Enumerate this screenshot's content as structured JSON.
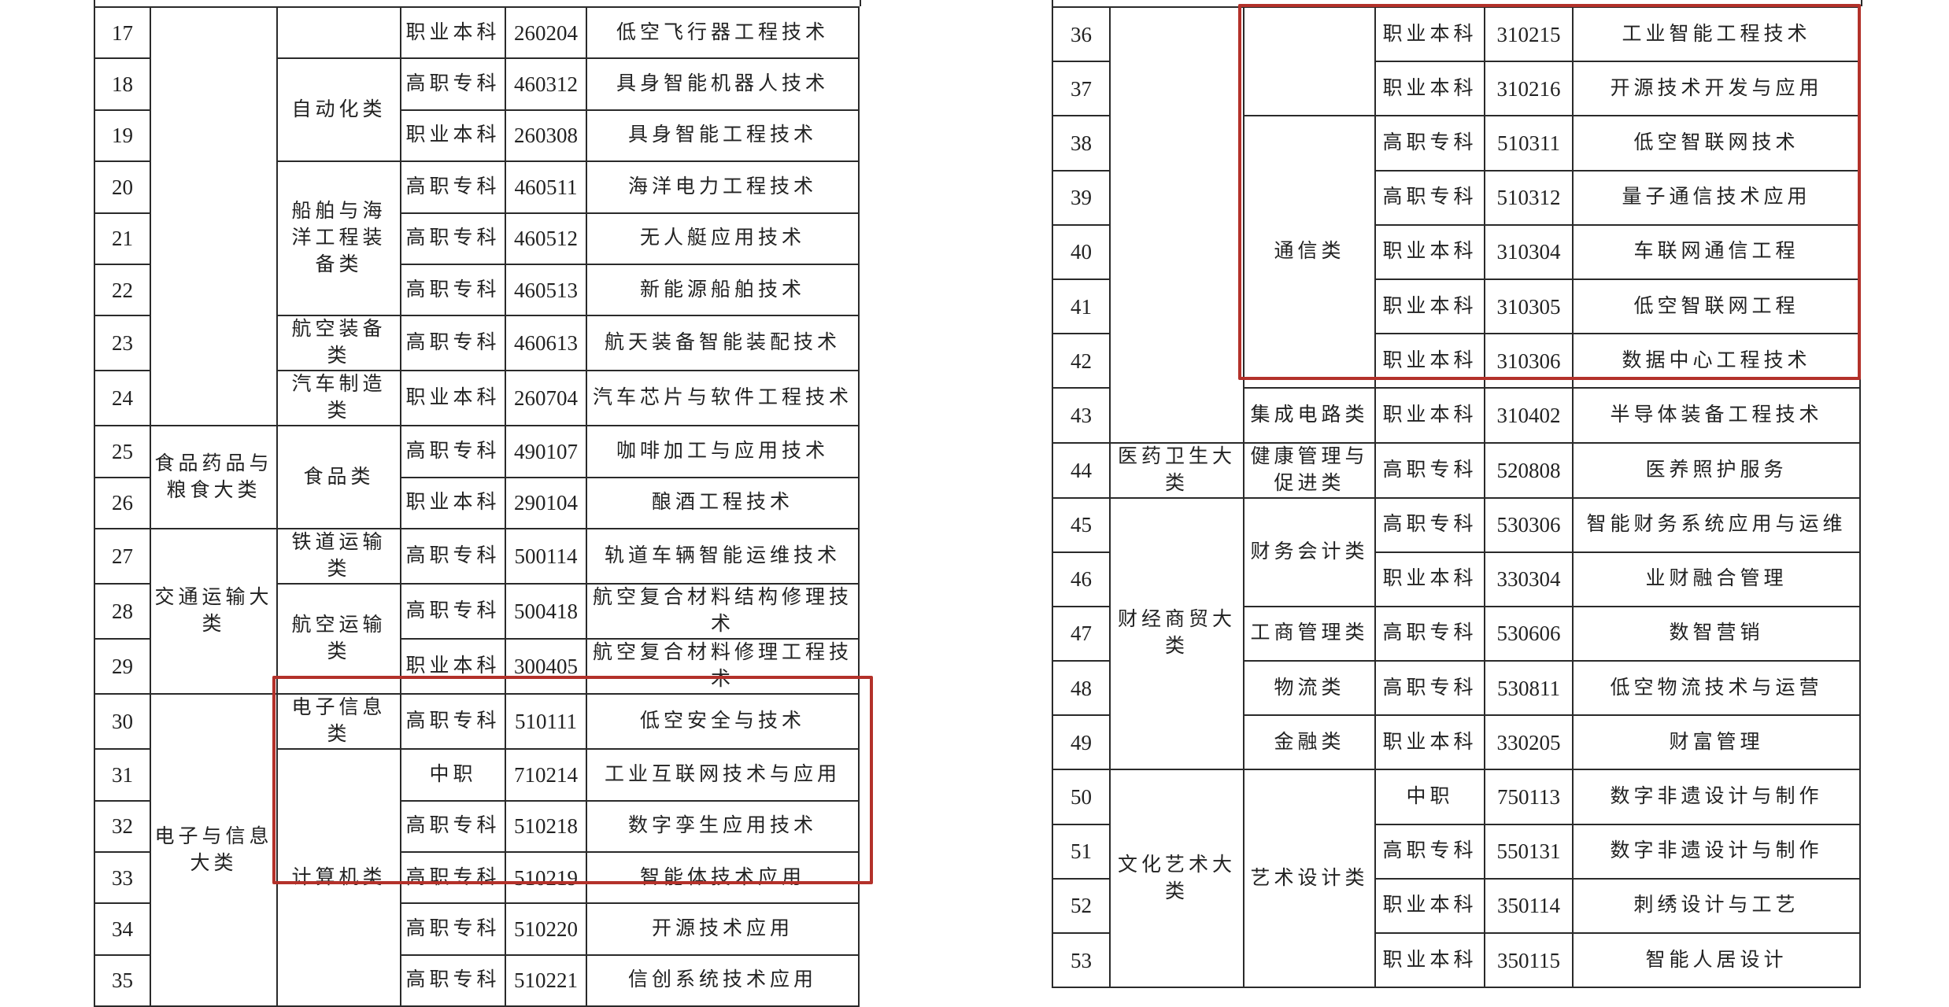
{
  "highlight_color": "#b3312a",
  "tables": [
    {
      "rows": [
        {
          "no": "17",
          "level": "职业本科",
          "code": "260204",
          "name": "低空飞行器工程技术"
        },
        {
          "no": "18",
          "level": "高职专科",
          "code": "460312",
          "name": "具身智能机器人技术"
        },
        {
          "no": "19",
          "level": "职业本科",
          "code": "260308",
          "name": "具身智能工程技术"
        },
        {
          "no": "20",
          "level": "高职专科",
          "code": "460511",
          "name": "海洋电力工程技术"
        },
        {
          "no": "21",
          "level": "高职专科",
          "code": "460512",
          "name": "无人艇应用技术"
        },
        {
          "no": "22",
          "level": "高职专科",
          "code": "460513",
          "name": "新能源船舶技术"
        },
        {
          "no": "23",
          "level": "高职专科",
          "code": "460613",
          "name": "航天装备智能装配技术"
        },
        {
          "no": "24",
          "level": "职业本科",
          "code": "260704",
          "name": "汽车芯片与软件工程技术"
        },
        {
          "no": "25",
          "level": "高职专科",
          "code": "490107",
          "name": "咖啡加工与应用技术"
        },
        {
          "no": "26",
          "level": "职业本科",
          "code": "290104",
          "name": "酿酒工程技术"
        },
        {
          "no": "27",
          "level": "高职专科",
          "code": "500114",
          "name": "轨道车辆智能运维技术"
        },
        {
          "no": "28",
          "level": "高职专科",
          "code": "500418",
          "name": "航空复合材料结构修理技术"
        },
        {
          "no": "29",
          "level": "职业本科",
          "code": "300405",
          "name": "航空复合材料修理工程技术"
        },
        {
          "no": "30",
          "level": "高职专科",
          "code": "510111",
          "name": "低空安全与技术"
        },
        {
          "no": "31",
          "level": "中职",
          "code": "710214",
          "name": "工业互联网技术与应用"
        },
        {
          "no": "32",
          "level": "高职专科",
          "code": "510218",
          "name": "数字孪生应用技术"
        },
        {
          "no": "33",
          "level": "高职专科",
          "code": "510219",
          "name": "智能体技术应用"
        },
        {
          "no": "34",
          "level": "高职专科",
          "code": "510220",
          "name": "开源技术应用"
        },
        {
          "no": "35",
          "level": "高职专科",
          "code": "510221",
          "name": "信创系统技术应用"
        }
      ],
      "majors": [
        {
          "label": "",
          "span": 8
        },
        {
          "label": "食品药品与粮食大类",
          "span": 2
        },
        {
          "label": "交通运输大类",
          "span": 3
        },
        {
          "label": "电子与信息大类",
          "span": 6
        }
      ],
      "classes": [
        {
          "label": "",
          "span": 1
        },
        {
          "label": "自动化类",
          "span": 2
        },
        {
          "label": "船舶与海洋工程装备类",
          "span": 3
        },
        {
          "label": "航空装备类",
          "span": 1
        },
        {
          "label": "汽车制造类",
          "span": 1
        },
        {
          "label": "食品类",
          "span": 2
        },
        {
          "label": "铁道运输类",
          "span": 1
        },
        {
          "label": "航空运输类",
          "span": 2
        },
        {
          "label": "电子信息类",
          "span": 1
        },
        {
          "label": "计算机类",
          "span": 5
        }
      ]
    },
    {
      "rows": [
        {
          "no": "36",
          "level": "职业本科",
          "code": "310215",
          "name": "工业智能工程技术"
        },
        {
          "no": "37",
          "level": "职业本科",
          "code": "310216",
          "name": "开源技术开发与应用"
        },
        {
          "no": "38",
          "level": "高职专科",
          "code": "510311",
          "name": "低空智联网技术"
        },
        {
          "no": "39",
          "level": "高职专科",
          "code": "510312",
          "name": "量子通信技术应用"
        },
        {
          "no": "40",
          "level": "职业本科",
          "code": "310304",
          "name": "车联网通信工程"
        },
        {
          "no": "41",
          "level": "职业本科",
          "code": "310305",
          "name": "低空智联网工程"
        },
        {
          "no": "42",
          "level": "职业本科",
          "code": "310306",
          "name": "数据中心工程技术"
        },
        {
          "no": "43",
          "level": "职业本科",
          "code": "310402",
          "name": "半导体装备工程技术"
        },
        {
          "no": "44",
          "level": "高职专科",
          "code": "520808",
          "name": "医养照护服务"
        },
        {
          "no": "45",
          "level": "高职专科",
          "code": "530306",
          "name": "智能财务系统应用与运维"
        },
        {
          "no": "46",
          "level": "职业本科",
          "code": "330304",
          "name": "业财融合管理"
        },
        {
          "no": "47",
          "level": "高职专科",
          "code": "530606",
          "name": "数智营销"
        },
        {
          "no": "48",
          "level": "高职专科",
          "code": "530811",
          "name": "低空物流技术与运营"
        },
        {
          "no": "49",
          "level": "职业本科",
          "code": "330205",
          "name": "财富管理"
        },
        {
          "no": "50",
          "level": "中职",
          "code": "750113",
          "name": "数字非遗设计与制作"
        },
        {
          "no": "51",
          "level": "高职专科",
          "code": "550131",
          "name": "数字非遗设计与制作"
        },
        {
          "no": "52",
          "level": "职业本科",
          "code": "350114",
          "name": "刺绣设计与工艺"
        },
        {
          "no": "53",
          "level": "职业本科",
          "code": "350115",
          "name": "智能人居设计"
        }
      ],
      "majors": [
        {
          "label": "",
          "span": 8
        },
        {
          "label": "医药卫生大类",
          "span": 1
        },
        {
          "label": "财经商贸大类",
          "span": 5
        },
        {
          "label": "文化艺术大类",
          "span": 4
        }
      ],
      "classes": [
        {
          "label": "",
          "span": 2
        },
        {
          "label": "通信类",
          "span": 5
        },
        {
          "label": "集成电路类",
          "span": 1
        },
        {
          "label": "健康管理与促进类",
          "span": 1
        },
        {
          "label": "财务会计类",
          "span": 2
        },
        {
          "label": "工商管理类",
          "span": 1
        },
        {
          "label": "物流类",
          "span": 1
        },
        {
          "label": "金融类",
          "span": 1
        },
        {
          "label": "艺术设计类",
          "span": 4
        }
      ]
    }
  ]
}
